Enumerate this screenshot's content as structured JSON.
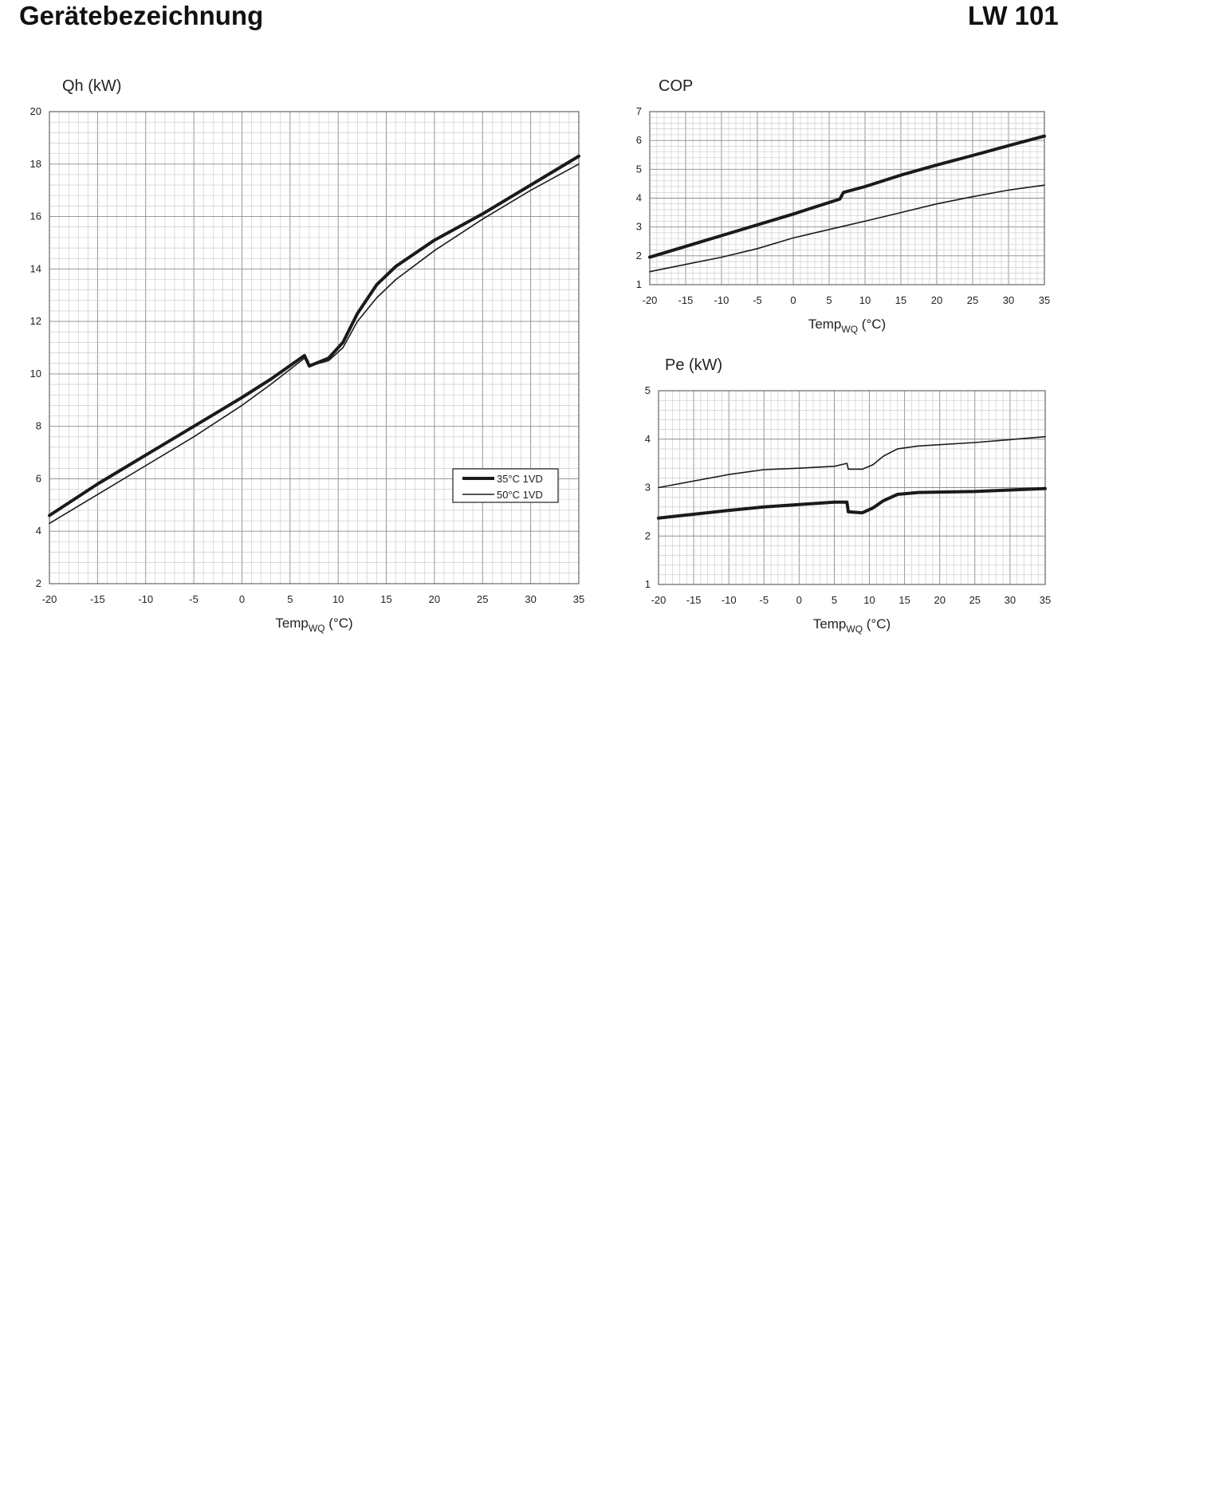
{
  "header": {
    "title": "Gerätebezeichnung",
    "model": "LW 101"
  },
  "colors": {
    "line": "#1a1a1a",
    "grid_major": "#8c8c8c",
    "grid_minor": "#c4c4c4"
  },
  "chart_data": [
    {
      "id": "qh",
      "type": "line",
      "title": "Qh (kW)",
      "xlabel_main": "Temp",
      "xlabel_sub": "WQ",
      "xlabel_unit": " (°C)",
      "xlim": [
        -20,
        35
      ],
      "ylim": [
        2,
        20
      ],
      "xticks": [
        -20,
        -15,
        -10,
        -5,
        0,
        5,
        10,
        15,
        20,
        25,
        30,
        35
      ],
      "yticks": [
        2,
        4,
        6,
        8,
        10,
        12,
        14,
        16,
        18,
        20
      ],
      "grid": true,
      "legend": "bottom-right",
      "series": [
        {
          "name": "35°C 1VD",
          "weight": "bold",
          "x": [
            -20,
            -15,
            -10,
            -5,
            0,
            3,
            6.5,
            7,
            9,
            10.5,
            12,
            14,
            16,
            20,
            25,
            30,
            35
          ],
          "y": [
            4.6,
            5.8,
            6.9,
            8.0,
            9.1,
            9.8,
            10.7,
            10.3,
            10.6,
            11.2,
            12.3,
            13.4,
            14.1,
            15.1,
            16.1,
            17.2,
            18.3
          ]
        },
        {
          "name": "50°C 1VD",
          "weight": "thin",
          "x": [
            -20,
            -15,
            -10,
            -5,
            0,
            3,
            6.5,
            7,
            9,
            10.5,
            12,
            14,
            16,
            20,
            25,
            30,
            35
          ],
          "y": [
            4.3,
            5.4,
            6.5,
            7.6,
            8.8,
            9.6,
            10.6,
            10.3,
            10.5,
            11.0,
            12.0,
            12.9,
            13.6,
            14.7,
            15.9,
            17.0,
            18.0
          ]
        }
      ]
    },
    {
      "id": "cop",
      "type": "line",
      "title": "COP",
      "xlabel_main": "Temp",
      "xlabel_sub": "WQ",
      "xlabel_unit": " (°C)",
      "xlim": [
        -20,
        35
      ],
      "ylim": [
        1,
        7
      ],
      "xticks": [
        -20,
        -15,
        -10,
        -5,
        0,
        5,
        10,
        15,
        20,
        25,
        30,
        35
      ],
      "yticks": [
        1,
        2,
        3,
        4,
        5,
        6,
        7
      ],
      "grid": true,
      "series": [
        {
          "name": "35°C 1VD",
          "weight": "bold",
          "x": [
            -20,
            -10,
            0,
            6.5,
            7,
            10,
            15,
            20,
            25,
            30,
            35
          ],
          "y": [
            1.95,
            2.7,
            3.45,
            3.97,
            4.2,
            4.4,
            4.8,
            5.15,
            5.48,
            5.82,
            6.15
          ]
        },
        {
          "name": "50°C 1VD",
          "weight": "thin",
          "x": [
            -20,
            -10,
            -5,
            0,
            6.5,
            10,
            15,
            20,
            25,
            30,
            35
          ],
          "y": [
            1.45,
            1.95,
            2.25,
            2.62,
            3.0,
            3.2,
            3.5,
            3.8,
            4.05,
            4.28,
            4.45
          ]
        }
      ]
    },
    {
      "id": "pe",
      "type": "line",
      "title": "Pe (kW)",
      "xlabel_main": "Temp",
      "xlabel_sub": "WQ",
      "xlabel_unit": " (°C)",
      "xlim": [
        -20,
        35
      ],
      "ylim": [
        1,
        5
      ],
      "xticks": [
        -20,
        -15,
        -10,
        -5,
        0,
        5,
        10,
        15,
        20,
        25,
        30,
        35
      ],
      "yticks": [
        1,
        2,
        3,
        4,
        5
      ],
      "grid": true,
      "series": [
        {
          "name": "35°C 1VD",
          "weight": "bold",
          "x": [
            -20,
            -10,
            -5,
            0,
            5,
            6.8,
            7,
            9,
            10.5,
            12,
            14,
            17,
            25,
            35
          ],
          "y": [
            2.37,
            2.53,
            2.6,
            2.65,
            2.7,
            2.7,
            2.5,
            2.48,
            2.58,
            2.73,
            2.86,
            2.9,
            2.92,
            2.98
          ]
        },
        {
          "name": "50°C 1VD",
          "weight": "thin",
          "x": [
            -20,
            -10,
            -5,
            0,
            5,
            6.8,
            7,
            9,
            10.5,
            12,
            14,
            17,
            25,
            35
          ],
          "y": [
            3.0,
            3.27,
            3.37,
            3.4,
            3.44,
            3.5,
            3.38,
            3.38,
            3.47,
            3.65,
            3.8,
            3.86,
            3.93,
            4.05
          ]
        }
      ]
    }
  ]
}
